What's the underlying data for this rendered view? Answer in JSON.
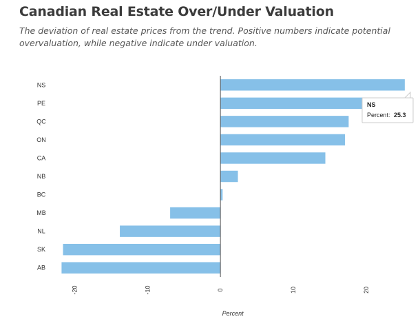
{
  "chart_data": {
    "type": "bar",
    "orientation": "horizontal",
    "title": "Canadian Real Estate Over/Under Valuation",
    "subtitle": "The deviation of real estate prices from the trend. Positive numbers indicate potential overvaluation, while negative indicate under valuation.",
    "categories": [
      "NS",
      "PE",
      "QC",
      "ON",
      "CA",
      "NB",
      "BC",
      "MB",
      "NL",
      "SK",
      "AB"
    ],
    "values": [
      25.3,
      20.2,
      17.6,
      17.1,
      14.4,
      2.4,
      0.3,
      -6.9,
      -13.8,
      -21.6,
      -21.8
    ],
    "xlabel": "Percent",
    "ylabel": "",
    "xlim": [
      -22.5,
      25.5
    ],
    "xticks": [
      -20,
      -10,
      0,
      10,
      20
    ],
    "xtick_labels": [
      "-20",
      "-10",
      "0",
      "10",
      "20"
    ],
    "bar_color": "#86c0e8",
    "axis_color": "#555555",
    "grid": false,
    "tooltip": {
      "category": "NS",
      "label": "Percent:",
      "value": "25.3"
    }
  }
}
